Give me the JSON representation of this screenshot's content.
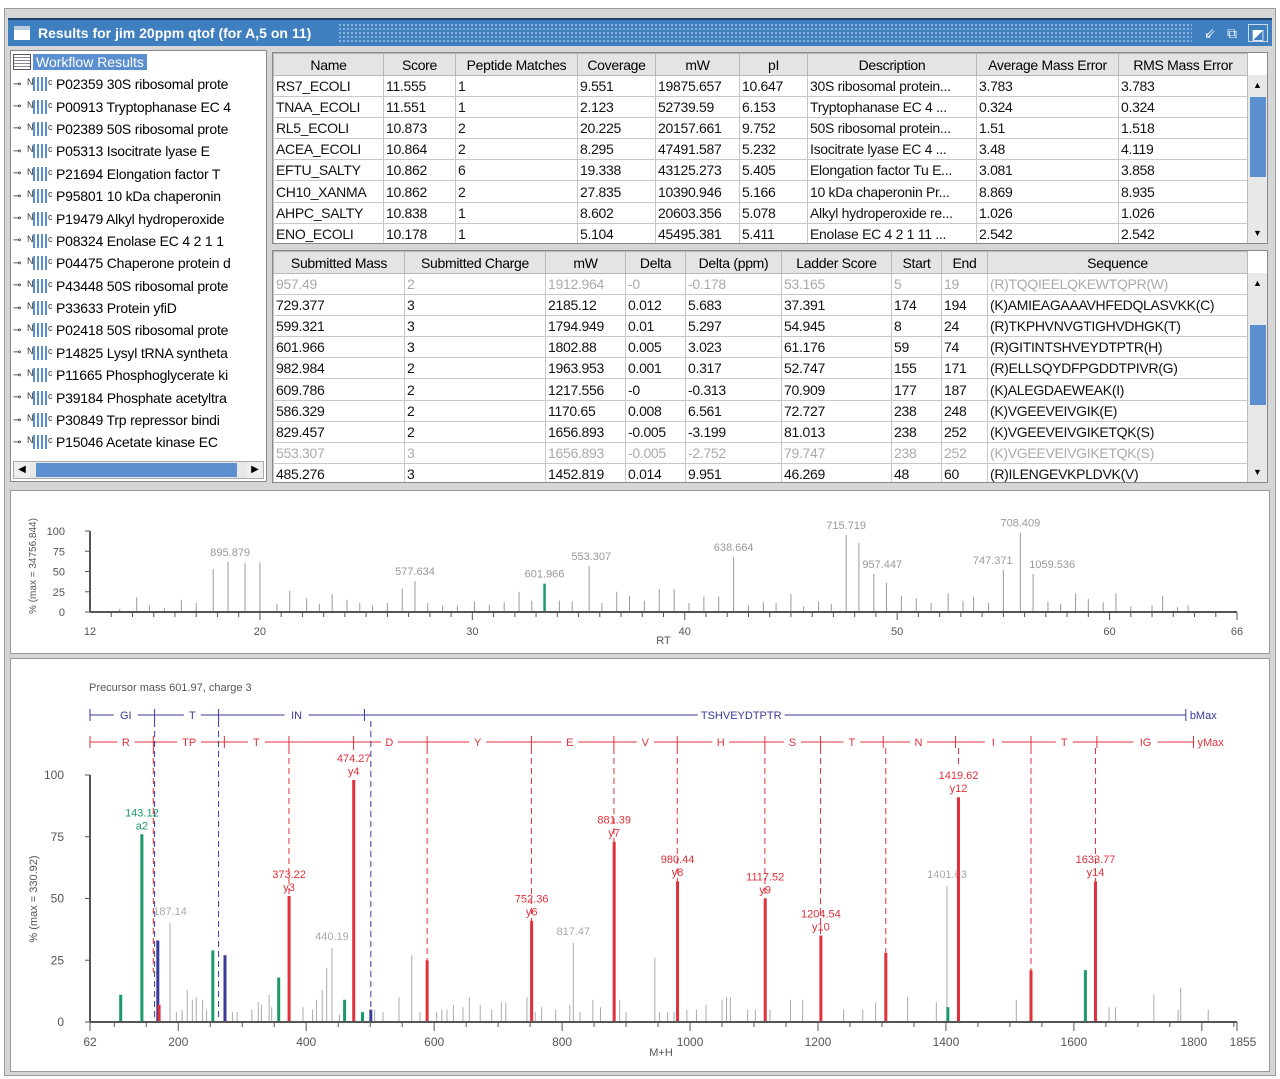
{
  "window": {
    "title": "Results for jim 20ppm qtof (for A,5 on 11)"
  },
  "tree": {
    "root": "Workflow Results",
    "items": [
      "P02359 30S ribosomal prote",
      "P00913 Tryptophanase  EC 4",
      "P02389 50S ribosomal prote",
      "P05313 Isocitrate lyase  E",
      "P21694 Elongation factor T",
      "P95801 10 kDa chaperonin",
      "P19479 Alkyl hydroperoxide",
      "P08324 Enolase  EC 4 2 1 1",
      "P04475 Chaperone protein d",
      "P43448 50S ribosomal prote",
      "P33633 Protein yfiD",
      "P02418 50S ribosomal prote",
      "P14825 Lysyl tRNA syntheta",
      "P11665 Phosphoglycerate ki",
      "P39184 Phosphate acetyltra",
      "P30849 Trp repressor bindi",
      "P15046 Acetate kinase  EC"
    ]
  },
  "protein_table": {
    "columns": [
      "Name",
      "Score",
      "Peptide Matches",
      "Coverage",
      "mW",
      "pI",
      "Description",
      "Average Mass Error",
      "RMS Mass Error"
    ],
    "rows": [
      [
        "RS7_ECOLI",
        "11.555",
        "1",
        "9.551",
        "19875.657",
        "10.647",
        "30S ribosomal protein...",
        "3.783",
        "3.783"
      ],
      [
        "TNAA_ECOLI",
        "11.551",
        "1",
        "2.123",
        "52739.59",
        "6.153",
        "Tryptophanase  EC 4 ...",
        "0.324",
        "0.324"
      ],
      [
        "RL5_ECOLI",
        "10.873",
        "2",
        "20.225",
        "20157.661",
        "9.752",
        "50S ribosomal protein...",
        "1.51",
        "1.518"
      ],
      [
        "ACEA_ECOLI",
        "10.864",
        "2",
        "8.295",
        "47491.587",
        "5.232",
        "Isocitrate lyase  EC 4 ...",
        "3.48",
        "4.119"
      ],
      [
        "EFTU_SALTY",
        "10.862",
        "6",
        "19.338",
        "43125.273",
        "5.405",
        "Elongation factor Tu  E...",
        "3.081",
        "3.858"
      ],
      [
        "CH10_XANMA",
        "10.862",
        "2",
        "27.835",
        "10390.946",
        "5.166",
        "10 kDa chaperonin  Pr...",
        "8.869",
        "8.935"
      ],
      [
        "AHPC_SALTY",
        "10.838",
        "1",
        "8.602",
        "20603.356",
        "5.078",
        "Alkyl hydroperoxide re...",
        "1.026",
        "1.026"
      ],
      [
        "ENO_ECOLI",
        "10.178",
        "1",
        "5.104",
        "45495.381",
        "5.411",
        "Enolase  EC 4 2 1 11  ...",
        "2.542",
        "2.542"
      ]
    ]
  },
  "peptide_table": {
    "columns": [
      "Submitted Mass",
      "Submitted Charge",
      "mW",
      "Delta",
      "Delta (ppm)",
      "Ladder Score",
      "Start",
      "End",
      "Sequence"
    ],
    "rows": [
      [
        "957.49",
        "2",
        "1912.964",
        "-0",
        "-0.178",
        "53.165",
        "5",
        "19",
        "(R)TQQIEELQKEWTQPR(W)"
      ],
      [
        "729.377",
        "3",
        "2185.12",
        "0.012",
        "5.683",
        "37.391",
        "174",
        "194",
        "(K)AMIEAGAAAVHFEDQLASVKK(C)"
      ],
      [
        "599.321",
        "3",
        "1794.949",
        "0.01",
        "5.297",
        "54.945",
        "8",
        "24",
        "(R)TKPHVNVGTIGHVDHGK(T)"
      ],
      [
        "601.966",
        "3",
        "1802.88",
        "0.005",
        "3.023",
        "61.176",
        "59",
        "74",
        "(R)GITINTSHVEYDTPTR(H)"
      ],
      [
        "982.984",
        "2",
        "1963.953",
        "0.001",
        "0.317",
        "52.747",
        "155",
        "171",
        "(R)ELLSQYDFPGDDTPIVR(G)"
      ],
      [
        "609.786",
        "2",
        "1217.556",
        "-0",
        "-0.313",
        "70.909",
        "177",
        "187",
        "(K)ALEGDAEWEAK(I)"
      ],
      [
        "586.329",
        "2",
        "1170.65",
        "0.008",
        "6.561",
        "72.727",
        "238",
        "248",
        "(K)VGEEVEIVGIK(E)"
      ],
      [
        "829.457",
        "2",
        "1656.893",
        "-0.005",
        "-3.199",
        "81.013",
        "238",
        "252",
        "(K)VGEEVEIVGIKETQK(S)"
      ],
      [
        "553.307",
        "3",
        "1656.893",
        "-0.005",
        "-2.752",
        "79.747",
        "238",
        "252",
        "(K)VGEEVEIVGIKETQK(S)"
      ],
      [
        "485.276",
        "3",
        "1452.819",
        "0.014",
        "9.951",
        "46.269",
        "48",
        "60",
        "(R)ILENGEVKPLDVK(V)"
      ]
    ],
    "dimmed_rows": [
      0,
      8
    ]
  },
  "colors": {
    "title_bar": "#3f7fc0",
    "selection": "#5b8fd0",
    "b_ion": "#3a3a9a",
    "y_ion": "#e0303a",
    "a_ion": "#1a9a6a",
    "unmatched": "#9a9a9a"
  },
  "chart_data": [
    {
      "type": "bar",
      "title": "",
      "xlabel": "RT",
      "ylabel": "% (max = 34756.844)",
      "xlim": [
        12,
        66
      ],
      "ylim": [
        0,
        100
      ],
      "xticks": [
        "12",
        "20",
        "30",
        "40",
        "50",
        "60",
        "66"
      ],
      "yticks": [
        "0",
        "25",
        "50",
        "75",
        "100"
      ],
      "highlight_rt": 33.4,
      "peaks": [
        [
          13.4,
          4
        ],
        [
          14.2,
          18
        ],
        [
          14.8,
          8
        ],
        [
          15.5,
          5
        ],
        [
          16.3,
          15
        ],
        [
          17,
          11
        ],
        [
          17.8,
          53
        ],
        [
          18.5,
          62
        ],
        [
          19.3,
          60
        ],
        [
          20,
          61
        ],
        [
          20.8,
          10
        ],
        [
          21.4,
          26
        ],
        [
          22.2,
          17
        ],
        [
          22.8,
          10
        ],
        [
          23.4,
          22
        ],
        [
          24.1,
          15
        ],
        [
          24.7,
          11
        ],
        [
          25.3,
          8
        ],
        [
          26,
          11
        ],
        [
          26.7,
          29
        ],
        [
          27.3,
          38
        ],
        [
          27.9,
          11
        ],
        [
          28.6,
          8
        ],
        [
          29.3,
          8
        ],
        [
          30.1,
          13
        ],
        [
          30.8,
          9
        ],
        [
          31.5,
          12
        ],
        [
          32.2,
          25
        ],
        [
          32.8,
          14
        ],
        [
          33.4,
          35
        ],
        [
          34.1,
          14
        ],
        [
          34.7,
          13
        ],
        [
          35.5,
          57
        ],
        [
          36.1,
          11
        ],
        [
          36.8,
          25
        ],
        [
          37.4,
          20
        ],
        [
          38.1,
          14
        ],
        [
          38.8,
          28
        ],
        [
          39.5,
          28
        ],
        [
          40.2,
          11
        ],
        [
          40.9,
          19
        ],
        [
          41.6,
          19
        ],
        [
          42.3,
          68
        ],
        [
          43,
          8
        ],
        [
          43.7,
          12
        ],
        [
          44.3,
          11
        ],
        [
          45,
          22
        ],
        [
          45.6,
          7
        ],
        [
          46.3,
          13
        ],
        [
          46.9,
          10
        ],
        [
          47.6,
          95
        ],
        [
          48.2,
          85
        ],
        [
          48.9,
          47
        ],
        [
          49.5,
          36
        ],
        [
          50.2,
          20
        ],
        [
          50.9,
          17
        ],
        [
          51.6,
          11
        ],
        [
          52.4,
          23
        ],
        [
          53.1,
          14
        ],
        [
          53.6,
          19
        ],
        [
          54.3,
          11
        ],
        [
          55,
          52
        ],
        [
          55.8,
          98
        ],
        [
          56.4,
          47
        ],
        [
          57.1,
          13
        ],
        [
          57.7,
          10
        ],
        [
          58.4,
          23
        ],
        [
          59,
          16
        ],
        [
          59.7,
          12
        ],
        [
          60.3,
          23
        ],
        [
          61,
          7
        ],
        [
          62,
          8
        ],
        [
          62.5,
          20
        ],
        [
          63.2,
          6
        ],
        [
          63.7,
          8
        ]
      ],
      "labels": [
        {
          "rt": 18.6,
          "y": 62,
          "text": "895.879"
        },
        {
          "rt": 27.3,
          "y": 38,
          "text": "577.634"
        },
        {
          "rt": 33.4,
          "y": 35,
          "text": "601.966"
        },
        {
          "rt": 35.6,
          "y": 57,
          "text": "553.307"
        },
        {
          "rt": 42.3,
          "y": 68,
          "text": "638.664"
        },
        {
          "rt": 47.6,
          "y": 95,
          "text": "715.719"
        },
        {
          "rt": 49.3,
          "y": 47,
          "text": "957.447"
        },
        {
          "rt": 54.5,
          "y": 52,
          "text": "747.371"
        },
        {
          "rt": 55.8,
          "y": 98,
          "text": "708.409"
        },
        {
          "rt": 57.3,
          "y": 47,
          "text": "1059.536"
        }
      ]
    },
    {
      "type": "bar",
      "title": "Precursor mass 601.97, charge 3",
      "xlabel": "M+H",
      "ylabel": "% (max = 330.92)",
      "xlim": [
        62,
        1855
      ],
      "ylim": [
        0,
        100
      ],
      "xticks": [
        "62",
        "200",
        "400",
        "600",
        "800",
        "1000",
        "1200",
        "1400",
        "1600",
        "1800",
        "1855"
      ],
      "yticks": [
        "0",
        "25",
        "50",
        "75",
        "100"
      ],
      "matched_peaks": [
        {
          "mz": 110,
          "y": 11,
          "type": "a"
        },
        {
          "mz": 143.12,
          "y": 76,
          "type": "a",
          "label": "143.12",
          "ion": "a2"
        },
        {
          "mz": 254,
          "y": 29,
          "type": "a"
        },
        {
          "mz": 357,
          "y": 18,
          "type": "a"
        },
        {
          "mz": 460,
          "y": 9,
          "type": "a"
        },
        {
          "mz": 488,
          "y": 4,
          "type": "a"
        },
        {
          "mz": 1403,
          "y": 6,
          "type": "a"
        },
        {
          "mz": 1618,
          "y": 21,
          "type": "a"
        },
        {
          "mz": 168,
          "y": 33,
          "type": "b"
        },
        {
          "mz": 273,
          "y": 27,
          "type": "b"
        },
        {
          "mz": 501,
          "y": 5,
          "type": "b"
        },
        {
          "mz": 170,
          "y": 7,
          "type": "y"
        },
        {
          "mz": 373.22,
          "y": 51,
          "type": "y",
          "label": "373.22",
          "ion": "y3"
        },
        {
          "mz": 474.27,
          "y": 98,
          "type": "y",
          "label": "474.27",
          "ion": "y4"
        },
        {
          "mz": 589,
          "y": 25,
          "type": "y"
        },
        {
          "mz": 752.36,
          "y": 41,
          "type": "y",
          "label": "752.36",
          "ion": "y6"
        },
        {
          "mz": 881.39,
          "y": 73,
          "type": "y",
          "label": "881.39",
          "ion": "y7"
        },
        {
          "mz": 980.44,
          "y": 57,
          "type": "y",
          "label": "980.44",
          "ion": "y8"
        },
        {
          "mz": 1117.52,
          "y": 50,
          "type": "y",
          "label": "1117.52",
          "ion": "y9"
        },
        {
          "mz": 1204.54,
          "y": 35,
          "type": "y",
          "label": "1204.54",
          "ion": "y10"
        },
        {
          "mz": 1306,
          "y": 28,
          "type": "y"
        },
        {
          "mz": 1419.62,
          "y": 91,
          "type": "y",
          "label": "1419.62",
          "ion": "y12"
        },
        {
          "mz": 1533,
          "y": 21,
          "type": "y"
        },
        {
          "mz": 1633.77,
          "y": 57,
          "type": "y",
          "label": "1633.77",
          "ion": "y14"
        }
      ],
      "unmatched_peaks": [
        [
          187.14,
          40,
          "187.14"
        ],
        [
          440.19,
          30,
          "440.19"
        ],
        [
          817.47,
          32,
          "817.47"
        ],
        [
          1401.63,
          55,
          "1401.63"
        ],
        [
          197,
          4
        ],
        [
          206,
          5
        ],
        [
          214,
          13
        ],
        [
          222,
          9
        ],
        [
          228,
          10
        ],
        [
          238,
          9
        ],
        [
          244,
          5
        ],
        [
          285,
          4
        ],
        [
          292,
          4
        ],
        [
          315,
          5
        ],
        [
          325,
          8
        ],
        [
          330,
          7
        ],
        [
          342,
          11
        ],
        [
          346,
          6
        ],
        [
          395,
          6
        ],
        [
          410,
          5
        ],
        [
          416,
          9
        ],
        [
          425,
          13
        ],
        [
          432,
          22
        ],
        [
          452,
          3
        ],
        [
          507,
          5
        ],
        [
          520,
          4
        ],
        [
          545,
          10
        ],
        [
          565,
          27
        ],
        [
          578,
          4
        ],
        [
          604,
          4
        ],
        [
          612,
          5
        ],
        [
          620,
          5
        ],
        [
          630,
          7
        ],
        [
          645,
          6
        ],
        [
          655,
          10
        ],
        [
          672,
          7
        ],
        [
          690,
          5
        ],
        [
          705,
          8
        ],
        [
          712,
          8
        ],
        [
          745,
          10
        ],
        [
          758,
          4
        ],
        [
          768,
          6
        ],
        [
          790,
          5
        ],
        [
          812,
          7
        ],
        [
          828,
          4
        ],
        [
          848,
          9
        ],
        [
          860,
          6
        ],
        [
          890,
          9
        ],
        [
          900,
          4
        ],
        [
          945,
          26
        ],
        [
          952,
          4
        ],
        [
          965,
          4
        ],
        [
          975,
          4
        ],
        [
          995,
          5
        ],
        [
          1010,
          5
        ],
        [
          1025,
          7
        ],
        [
          1050,
          9
        ],
        [
          1057,
          10
        ],
        [
          1063,
          10
        ],
        [
          1090,
          5
        ],
        [
          1102,
          5
        ],
        [
          1125,
          5
        ],
        [
          1157,
          9
        ],
        [
          1176,
          9
        ],
        [
          1240,
          5
        ],
        [
          1270,
          5
        ],
        [
          1290,
          8
        ],
        [
          1340,
          10
        ],
        [
          1385,
          8
        ],
        [
          1510,
          9
        ],
        [
          1655,
          6
        ],
        [
          1665,
          6
        ],
        [
          1725,
          11
        ],
        [
          1763,
          5
        ],
        [
          1767,
          14
        ],
        [
          1810,
          5
        ]
      ],
      "b_ladder": {
        "ticks_mz": [
          62,
          163,
          263,
          491,
          1775
        ],
        "labels": [
          {
            "mz": 118,
            "text": "GI"
          },
          {
            "mz": 222,
            "text": "T"
          },
          {
            "mz": 385,
            "text": "IN"
          },
          {
            "mz": 1080,
            "text": "TSHVEYDTPTR"
          }
        ],
        "end_label": "bMax"
      },
      "y_ladder": {
        "ticks_mz": [
          62,
          161,
          272,
          373,
          474,
          589,
          752,
          881,
          980,
          1117,
          1204,
          1302,
          1415,
          1533,
          1636,
          1787
        ],
        "labels": [
          {
            "mz": 118,
            "text": "R"
          },
          {
            "mz": 217,
            "text": "TP"
          },
          {
            "mz": 322,
            "text": "T"
          },
          {
            "mz": 530,
            "text": "D"
          },
          {
            "mz": 668,
            "text": "Y"
          },
          {
            "mz": 812,
            "text": "E"
          },
          {
            "mz": 930,
            "text": "V"
          },
          {
            "mz": 1048,
            "text": "H"
          },
          {
            "mz": 1160,
            "text": "S"
          },
          {
            "mz": 1253,
            "text": "T"
          },
          {
            "mz": 1357,
            "text": "N"
          },
          {
            "mz": 1474,
            "text": "I"
          },
          {
            "mz": 1585,
            "text": "T"
          },
          {
            "mz": 1712,
            "text": "IG"
          }
        ],
        "end_label": "yMax",
        "dashed_mz": [
          161,
          373,
          474,
          589,
          752,
          881,
          980,
          1117,
          1204,
          1306,
          1419.62,
          1533,
          1633.77
        ],
        "b_dashed_mz": [
          163,
          263,
          501
        ]
      }
    }
  ]
}
